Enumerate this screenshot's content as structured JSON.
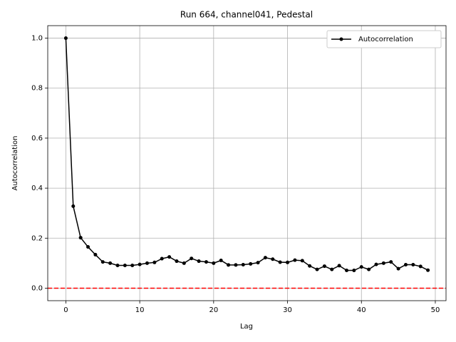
{
  "chart_data": {
    "type": "line",
    "title": "Run 664, channel041, Pedestal",
    "xlabel": "Lag",
    "ylabel": "Autocorrelation",
    "x": [
      0,
      1,
      2,
      3,
      4,
      5,
      6,
      7,
      8,
      9,
      10,
      11,
      12,
      13,
      14,
      15,
      16,
      17,
      18,
      19,
      20,
      21,
      22,
      23,
      24,
      25,
      26,
      27,
      28,
      29,
      30,
      31,
      32,
      33,
      34,
      35,
      36,
      37,
      38,
      39,
      40,
      41,
      42,
      43,
      44,
      45,
      46,
      47,
      48,
      49
    ],
    "series": [
      {
        "name": "Autocorrelation",
        "color": "#000000",
        "values": [
          1.0,
          0.328,
          0.202,
          0.165,
          0.134,
          0.105,
          0.1,
          0.091,
          0.091,
          0.091,
          0.095,
          0.1,
          0.103,
          0.118,
          0.125,
          0.108,
          0.1,
          0.119,
          0.108,
          0.105,
          0.1,
          0.111,
          0.093,
          0.093,
          0.094,
          0.097,
          0.102,
          0.122,
          0.116,
          0.104,
          0.103,
          0.112,
          0.11,
          0.089,
          0.075,
          0.088,
          0.075,
          0.09,
          0.071,
          0.071,
          0.085,
          0.075,
          0.095,
          0.1,
          0.105,
          0.078,
          0.094,
          0.094,
          0.087,
          0.072
        ]
      }
    ],
    "hline": {
      "value": 0,
      "color": "#ff0000"
    },
    "xlim": [
      -2.45,
      51.45
    ],
    "ylim": [
      -0.05,
      1.05
    ],
    "xticks": [
      0,
      10,
      20,
      30,
      40,
      50
    ],
    "yticks": [
      {
        "value": 0,
        "label": "0.0"
      },
      {
        "value": 0.2,
        "label": "0.2"
      },
      {
        "value": 0.4,
        "label": "0.4"
      },
      {
        "value": 0.6,
        "label": "0.6"
      },
      {
        "value": 0.8,
        "label": "0.8"
      },
      {
        "value": 1.0,
        "label": "1.0"
      }
    ],
    "grid": true,
    "legend": "upper right"
  }
}
